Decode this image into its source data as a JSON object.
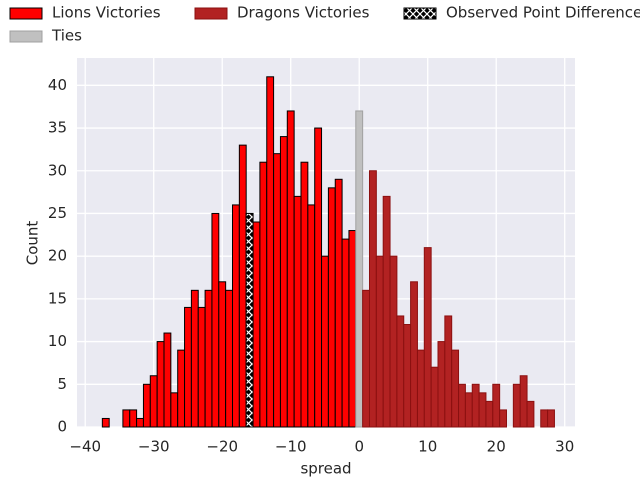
{
  "chart_data": {
    "type": "histogram",
    "xlabel": "spread",
    "ylabel": "Count",
    "xlim": [
      -41.2,
      31.5
    ],
    "ylim": [
      0,
      43.2
    ],
    "xticks": [
      {
        "value": -40,
        "label": "−40"
      },
      {
        "value": -30,
        "label": "−30"
      },
      {
        "value": -20,
        "label": "−20"
      },
      {
        "value": -10,
        "label": "−10"
      },
      0,
      10,
      20,
      30
    ],
    "yticks": [
      0,
      5,
      10,
      15,
      20,
      25,
      30,
      35,
      40
    ],
    "grid": true,
    "series": [
      {
        "name": "Lions Victories",
        "color": "#ff0000",
        "edgecolor": "#000000",
        "bins": [
          -37.5,
          -36.5,
          -35.5,
          -34.5,
          -33.5,
          -32.5,
          -31.5,
          -30.5,
          -29.5,
          -28.5,
          -27.5,
          -26.5,
          -25.5,
          -24.5,
          -23.5,
          -22.5,
          -21.5,
          -20.5,
          -19.5,
          -18.5,
          -17.5,
          -16.5,
          -15.5,
          -14.5,
          -13.5,
          -12.5,
          -11.5,
          -10.5,
          -9.5,
          -8.5,
          -7.5,
          -6.5,
          -5.5,
          -4.5,
          -3.5,
          -2.5,
          -1.5,
          -0.5
        ],
        "values": [
          1,
          0,
          0,
          2,
          2,
          1,
          5,
          6,
          10,
          11,
          4,
          9,
          14,
          16,
          14,
          16,
          25,
          17,
          16,
          26,
          33,
          25,
          24,
          31,
          41,
          32,
          34,
          37,
          27,
          31,
          26,
          35,
          20,
          28,
          29,
          22,
          23
        ]
      },
      {
        "name": "Ties",
        "color": "#c0c0c0",
        "edgecolor": "#a0a0a0",
        "bins": [
          -0.5,
          0.5
        ],
        "values": [
          37
        ]
      },
      {
        "name": "Dragons Victories",
        "color": "#b22222",
        "edgecolor": "#8b1010",
        "bins": [
          0.5,
          1.5,
          2.5,
          3.5,
          4.5,
          5.5,
          6.5,
          7.5,
          8.5,
          9.5,
          10.5,
          11.5,
          12.5,
          13.5,
          14.5,
          15.5,
          16.5,
          17.5,
          18.5,
          19.5,
          20.5,
          21.5,
          22.5,
          23.5,
          24.5,
          25.5,
          26.5,
          27.5,
          28.5
        ],
        "values": [
          16,
          30,
          20,
          27,
          20,
          13,
          12,
          17,
          9,
          21,
          7,
          10,
          13,
          9,
          5,
          4,
          5,
          4,
          3,
          5,
          2,
          0,
          5,
          6,
          3,
          0,
          2,
          2
        ]
      },
      {
        "name": "Observed Point Difference",
        "color": "#000000",
        "edgecolor": "#000000",
        "hatch": true,
        "bins": [
          -16.5,
          -15.5
        ],
        "values": [
          25
        ]
      }
    ]
  }
}
